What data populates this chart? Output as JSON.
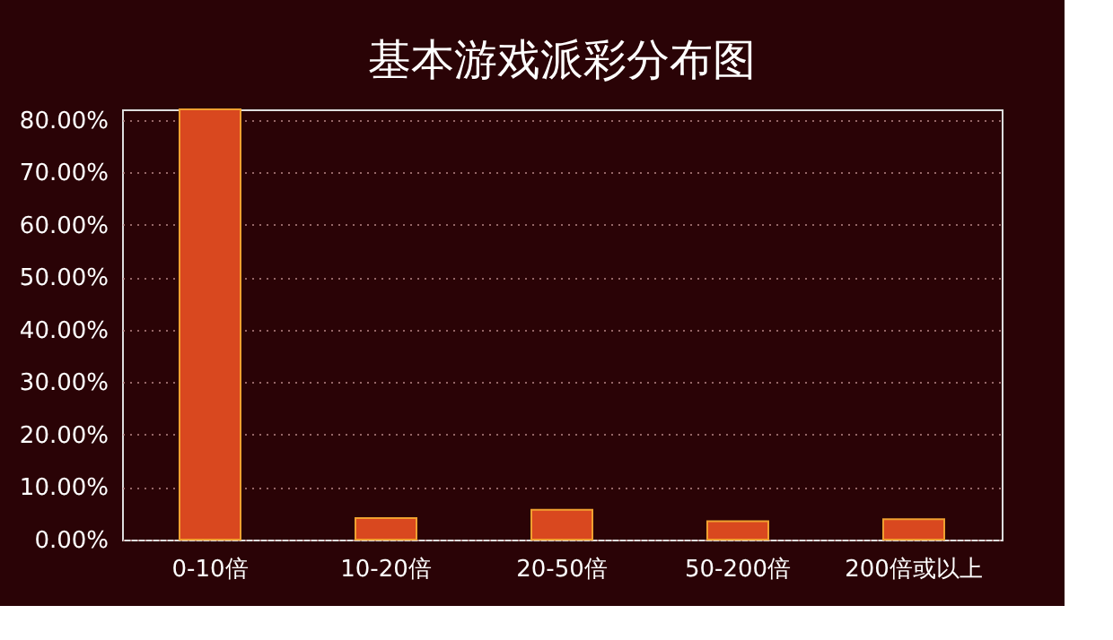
{
  "chart_data": {
    "type": "bar",
    "title": "基本游戏派彩分布图",
    "categories": [
      "0-10倍",
      "10-20倍",
      "20-50倍",
      "50-200倍",
      "200倍或以上"
    ],
    "values": [
      82,
      4.1,
      5.7,
      3.5,
      3.9
    ],
    "color": "#d9481f",
    "ylim": [
      0,
      82
    ],
    "yticks": [
      {
        "value": 0,
        "label": "0.00%"
      },
      {
        "value": 10,
        "label": "10.00%"
      },
      {
        "value": 20,
        "label": "20.00%"
      },
      {
        "value": 30,
        "label": "30.00%"
      },
      {
        "value": 40,
        "label": "40.00%"
      },
      {
        "value": 50,
        "label": "50.00%"
      },
      {
        "value": 60,
        "label": "60.00%"
      },
      {
        "value": 70,
        "label": "70.00%"
      },
      {
        "value": 80,
        "label": "80.00%"
      }
    ],
    "grid": "y"
  }
}
